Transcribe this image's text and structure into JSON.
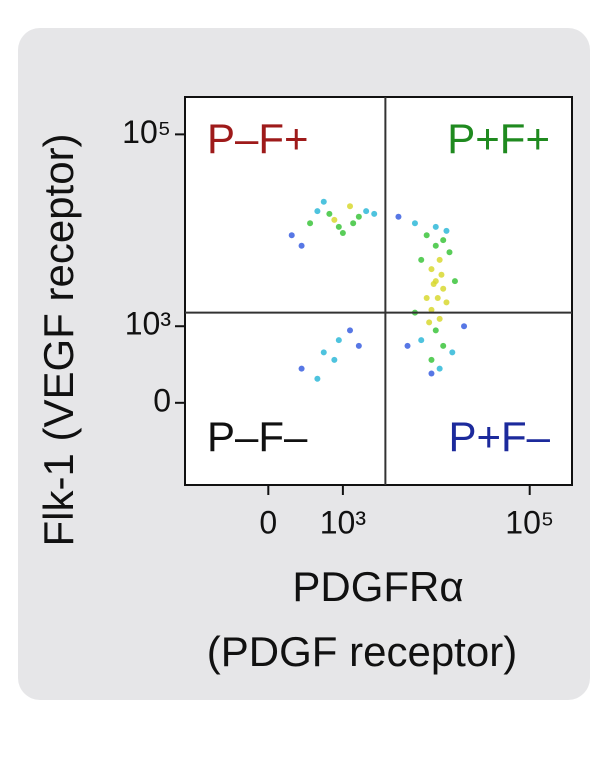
{
  "chart_data": {
    "type": "scatter",
    "scale": "biexponential",
    "x_label": "PDGFRα",
    "x_label_2": "(PDGF receptor)",
    "y_label": "Flk-1 (VEGF receptor)",
    "xlim": [
      -1250,
      282000
    ],
    "ylim": [
      -1150,
      244000
    ],
    "xticks": [
      0,
      {
        "value": 1000,
        "label": "10³"
      },
      {
        "value": 100000,
        "label": "10⁵"
      }
    ],
    "yticks": [
      0,
      {
        "value": 1000,
        "label": "10³"
      },
      {
        "value": 100000,
        "label": "10⁵"
      }
    ],
    "gates": {
      "x": 2900,
      "y": 1400
    },
    "quadrants": [
      {
        "label": "P–F+",
        "color": "#9e1a1a",
        "corner": "top-left"
      },
      {
        "label": "P+F+",
        "color": "#1f8a1f",
        "corner": "top-right"
      },
      {
        "label": "P–F–",
        "color": "#111111",
        "corner": "bottom-left"
      },
      {
        "label": "P+F–",
        "color": "#1c2a9c",
        "corner": "bottom-right"
      }
    ],
    "colormap": [
      "#3a5fe0",
      "#2fb8d8",
      "#3cc43c",
      "#d8d830"
    ],
    "x": [
      200,
      400,
      700,
      900,
      1200,
      1500,
      600,
      300,
      1800,
      1000,
      500,
      800,
      1300,
      2200,
      300,
      600,
      900,
      1200,
      500,
      800,
      1500,
      8000,
      10000,
      12000,
      7000,
      9000,
      11000,
      14000,
      10000,
      12000,
      8000,
      9000,
      11000,
      13000,
      10000,
      7000,
      12000,
      9000,
      11000,
      15000,
      8500,
      10500,
      9500,
      11500,
      6000,
      16000,
      13000,
      10000,
      5000,
      20000,
      9000,
      4000,
      6000
    ],
    "y": [
      9000,
      12000,
      15000,
      11000,
      18000,
      14000,
      20000,
      7000,
      16000,
      9500,
      16000,
      13000,
      12000,
      15000,
      300,
      500,
      700,
      900,
      200,
      400,
      600,
      9000,
      7000,
      8000,
      5000,
      4000,
      5000,
      6000,
      3000,
      2500,
      2000,
      1500,
      1200,
      1800,
      900,
      700,
      600,
      400,
      300,
      500,
      1100,
      2000,
      2800,
      3500,
      1400,
      3000,
      10000,
      11000,
      600,
      1000,
      250,
      14000,
      12000
    ]
  }
}
